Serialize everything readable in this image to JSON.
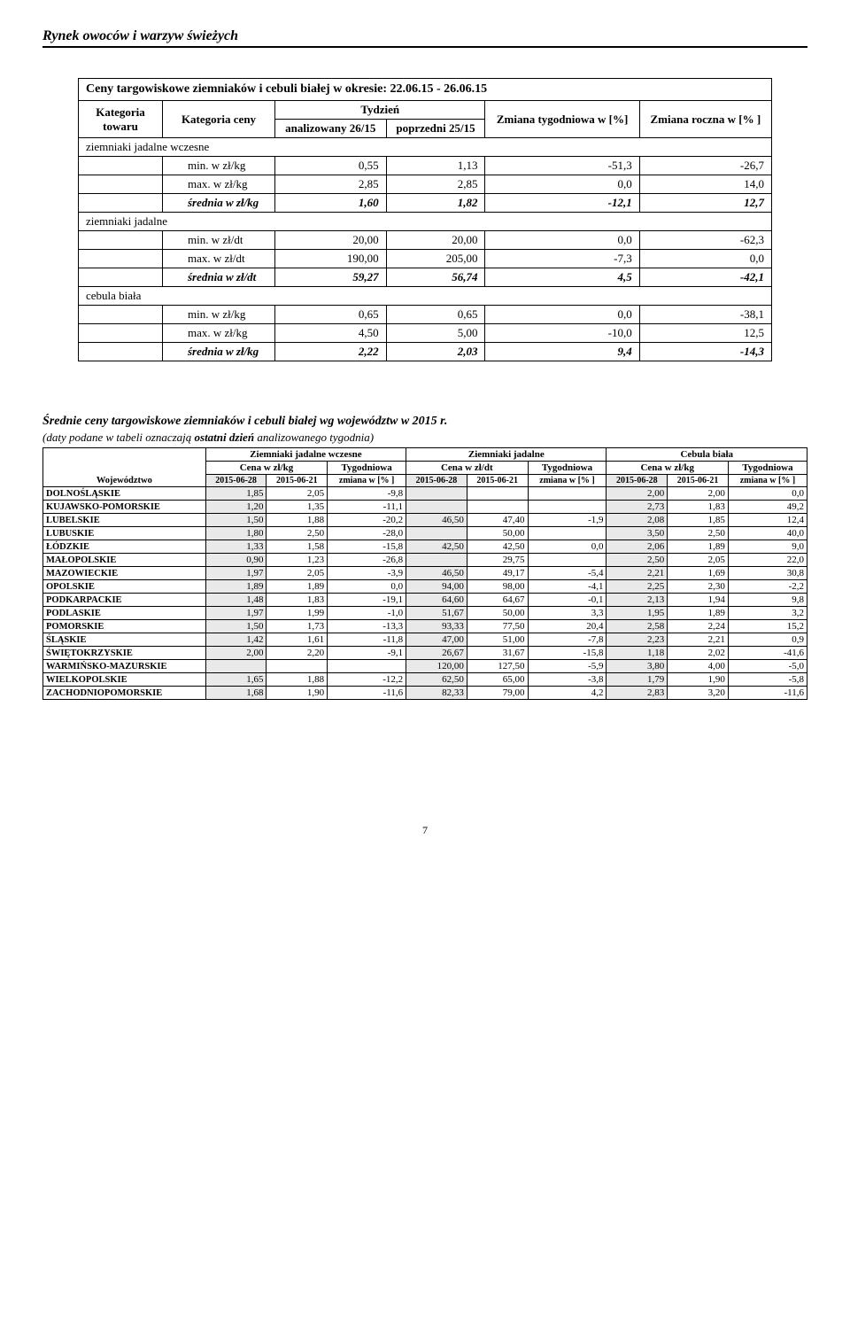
{
  "header": "Rynek owoców i warzyw świeżych",
  "table1": {
    "title": "Ceny targowiskowe ziemniaków i cebuli białej w okresie: 22.06.15 - 26.06.15",
    "hdr": {
      "kat_towaru": "Kategoria towaru",
      "kat_ceny": "Kategoria ceny",
      "tydzien": "Tydzień",
      "analizowany": "analizowany 26/15",
      "poprzedni": "poprzedni 25/15",
      "zmiana_tyg": "Zmiana tygodniowa w [%]",
      "zmiana_roczna": "Zmiana roczna w [% ]"
    },
    "sections": [
      {
        "name": "ziemniaki jadalne wczesne",
        "rows": [
          {
            "lbl": "min. w zł/kg",
            "a": "0,55",
            "p": "1,13",
            "t": "-51,3",
            "r": "-26,7"
          },
          {
            "lbl": "max. w zł/kg",
            "a": "2,85",
            "p": "2,85",
            "t": "0,0",
            "r": "14,0"
          }
        ],
        "avg": {
          "lbl": "średnia w zł/kg",
          "a": "1,60",
          "p": "1,82",
          "t": "-12,1",
          "r": "12,7"
        }
      },
      {
        "name": "ziemniaki jadalne",
        "rows": [
          {
            "lbl": "min. w zł/dt",
            "a": "20,00",
            "p": "20,00",
            "t": "0,0",
            "r": "-62,3"
          },
          {
            "lbl": "max. w zł/dt",
            "a": "190,00",
            "p": "205,00",
            "t": "-7,3",
            "r": "0,0"
          }
        ],
        "avg": {
          "lbl": "średnia w zł/dt",
          "a": "59,27",
          "p": "56,74",
          "t": "4,5",
          "r": "-42,1"
        }
      },
      {
        "name": "cebula biała",
        "rows": [
          {
            "lbl": "min. w zł/kg",
            "a": "0,65",
            "p": "0,65",
            "t": "0,0",
            "r": "-38,1"
          },
          {
            "lbl": "max. w zł/kg",
            "a": "4,50",
            "p": "5,00",
            "t": "-10,0",
            "r": "12,5"
          }
        ],
        "avg": {
          "lbl": "średnia w zł/kg",
          "a": "2,22",
          "p": "2,03",
          "t": "9,4",
          "r": "-14,3"
        }
      }
    ]
  },
  "table2": {
    "title": "Średnie ceny targowiskowe ziemniaków i cebuli białej wg województw w 2015 r.",
    "sub_pre": "(daty podane w tabeli oznaczają ",
    "sub_bold": "ostatni dzień",
    "sub_post": "  analizowanego tygodnia)",
    "ghdr": {
      "g1": "Ziemniaki jadalne wczesne",
      "g2": "Ziemniaki jadalne",
      "g3": "Cebula biała"
    },
    "sub1": {
      "cena_kg": "Cena w zł/kg",
      "cena_dt": "Cena w zł/dt",
      "tyg": "Tygodniowa"
    },
    "sub2": {
      "woj": "Województwo",
      "d1": "2015-06-28",
      "d2": "2015-06-21",
      "zm": "zmiana w [% ]"
    },
    "rows": [
      {
        "w": "DOLNOŚLĄSKIE",
        "a1": "1,85",
        "a2": "2,05",
        "a3": "-9,8",
        "b1": "",
        "b2": "",
        "b3": "",
        "c1": "2,00",
        "c2": "2,00",
        "c3": "0,0"
      },
      {
        "w": "KUJAWSKO-POMORSKIE",
        "a1": "1,20",
        "a2": "1,35",
        "a3": "-11,1",
        "b1": "",
        "b2": "",
        "b3": "",
        "c1": "2,73",
        "c2": "1,83",
        "c3": "49,2"
      },
      {
        "w": "LUBELSKIE",
        "a1": "1,50",
        "a2": "1,88",
        "a3": "-20,2",
        "b1": "46,50",
        "b2": "47,40",
        "b3": "-1,9",
        "c1": "2,08",
        "c2": "1,85",
        "c3": "12,4"
      },
      {
        "w": "LUBUSKIE",
        "a1": "1,80",
        "a2": "2,50",
        "a3": "-28,0",
        "b1": "",
        "b2": "50,00",
        "b3": "",
        "c1": "3,50",
        "c2": "2,50",
        "c3": "40,0"
      },
      {
        "w": "ŁÓDZKIE",
        "a1": "1,33",
        "a2": "1,58",
        "a3": "-15,8",
        "b1": "42,50",
        "b2": "42,50",
        "b3": "0,0",
        "c1": "2,06",
        "c2": "1,89",
        "c3": "9,0"
      },
      {
        "w": "MAŁOPOLSKIE",
        "a1": "0,90",
        "a2": "1,23",
        "a3": "-26,8",
        "b1": "",
        "b2": "29,75",
        "b3": "",
        "c1": "2,50",
        "c2": "2,05",
        "c3": "22,0"
      },
      {
        "w": "MAZOWIECKIE",
        "a1": "1,97",
        "a2": "2,05",
        "a3": "-3,9",
        "b1": "46,50",
        "b2": "49,17",
        "b3": "-5,4",
        "c1": "2,21",
        "c2": "1,69",
        "c3": "30,8"
      },
      {
        "w": "OPOLSKIE",
        "a1": "1,89",
        "a2": "1,89",
        "a3": "0,0",
        "b1": "94,00",
        "b2": "98,00",
        "b3": "-4,1",
        "c1": "2,25",
        "c2": "2,30",
        "c3": "-2,2"
      },
      {
        "w": "PODKARPACKIE",
        "a1": "1,48",
        "a2": "1,83",
        "a3": "-19,1",
        "b1": "64,60",
        "b2": "64,67",
        "b3": "-0,1",
        "c1": "2,13",
        "c2": "1,94",
        "c3": "9,8"
      },
      {
        "w": "PODLASKIE",
        "a1": "1,97",
        "a2": "1,99",
        "a3": "-1,0",
        "b1": "51,67",
        "b2": "50,00",
        "b3": "3,3",
        "c1": "1,95",
        "c2": "1,89",
        "c3": "3,2"
      },
      {
        "w": "POMORSKIE",
        "a1": "1,50",
        "a2": "1,73",
        "a3": "-13,3",
        "b1": "93,33",
        "b2": "77,50",
        "b3": "20,4",
        "c1": "2,58",
        "c2": "2,24",
        "c3": "15,2"
      },
      {
        "w": "ŚLĄSKIE",
        "a1": "1,42",
        "a2": "1,61",
        "a3": "-11,8",
        "b1": "47,00",
        "b2": "51,00",
        "b3": "-7,8",
        "c1": "2,23",
        "c2": "2,21",
        "c3": "0,9"
      },
      {
        "w": "ŚWIĘTOKRZYSKIE",
        "a1": "2,00",
        "a2": "2,20",
        "a3": "-9,1",
        "b1": "26,67",
        "b2": "31,67",
        "b3": "-15,8",
        "c1": "1,18",
        "c2": "2,02",
        "c3": "-41,6"
      },
      {
        "w": "WARMIŃSKO-MAZURSKIE",
        "a1": "",
        "a2": "",
        "a3": "",
        "b1": "120,00",
        "b2": "127,50",
        "b3": "-5,9",
        "c1": "3,80",
        "c2": "4,00",
        "c3": "-5,0"
      },
      {
        "w": "WIELKOPOLSKIE",
        "a1": "1,65",
        "a2": "1,88",
        "a3": "-12,2",
        "b1": "62,50",
        "b2": "65,00",
        "b3": "-3,8",
        "c1": "1,79",
        "c2": "1,90",
        "c3": "-5,8"
      },
      {
        "w": "ZACHODNIOPOMORSKIE",
        "a1": "1,68",
        "a2": "1,90",
        "a3": "-11,6",
        "b1": "82,33",
        "b2": "79,00",
        "b3": "4,2",
        "c1": "2,83",
        "c2": "3,20",
        "c3": "-11,6"
      }
    ]
  },
  "pagenum": "7"
}
